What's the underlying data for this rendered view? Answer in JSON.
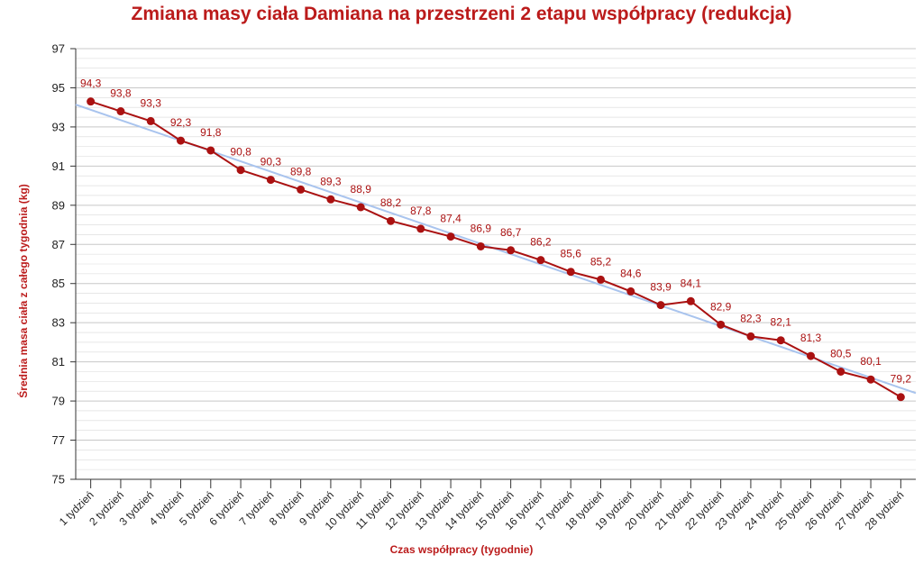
{
  "chart_data": {
    "type": "line",
    "title": "Zmiana masy ciała Damiana na przestrzeni 2 etapu współpracy (redukcja)",
    "xlabel": "Czas współpracy (tygodnie)",
    "ylabel": "Średnia masa ciała z całego tygodnia (kg)",
    "ylim": [
      75,
      97
    ],
    "yticks": [
      75,
      77,
      79,
      81,
      83,
      85,
      87,
      89,
      91,
      93,
      95,
      97
    ],
    "grid": true,
    "categories": [
      "1 tydzień",
      "2 tydzień",
      "3 tydzień",
      "4 tydzień",
      "5 tydzień",
      "6 tydzień",
      "7 tydzień",
      "8 tydzień",
      "9 tydzień",
      "10 tydzień",
      "11 tydzień",
      "12 tydzień",
      "13 tydzień",
      "14 tydzień",
      "15 tydzień",
      "16 tydzień",
      "17 tydzień",
      "18 tydzień",
      "19 tydzień",
      "20 tydzień",
      "21 tydzień",
      "22 tydzień",
      "23 tydzień",
      "24 tydzień",
      "25 tydzień",
      "26 tydzień",
      "27 tydzień",
      "28 tydzień"
    ],
    "series": [
      {
        "values": [
          94.3,
          93.8,
          93.3,
          92.3,
          91.8,
          90.8,
          90.3,
          89.8,
          89.3,
          88.9,
          88.2,
          87.8,
          87.4,
          86.9,
          86.7,
          86.2,
          85.6,
          85.2,
          84.6,
          83.9,
          84.1,
          82.9,
          82.3,
          82.1,
          81.3,
          80.5,
          80.1,
          79.2
        ],
        "data_labels": [
          "94,3",
          "93,8",
          "93,3",
          "92,3",
          "91,8",
          "90,8",
          "90,3",
          "89,8",
          "89,3",
          "88,9",
          "88,2",
          "87,8",
          "87,4",
          "86,9",
          "86,7",
          "86,2",
          "85,6",
          "85,2",
          "84,6",
          "83,9",
          "84,1",
          "82,9",
          "82,3",
          "82,1",
          "81,3",
          "80,5",
          "80,1",
          "79,2"
        ],
        "color": "#aa1111",
        "marker": "circle"
      }
    ],
    "trendline": {
      "type": "linear",
      "color": "#a9c4ee"
    }
  },
  "colors": {
    "title": "#bb1b1b",
    "axis_labels": "#bb1b1b",
    "grid": "#d9d9d9",
    "axis": "#333333"
  }
}
